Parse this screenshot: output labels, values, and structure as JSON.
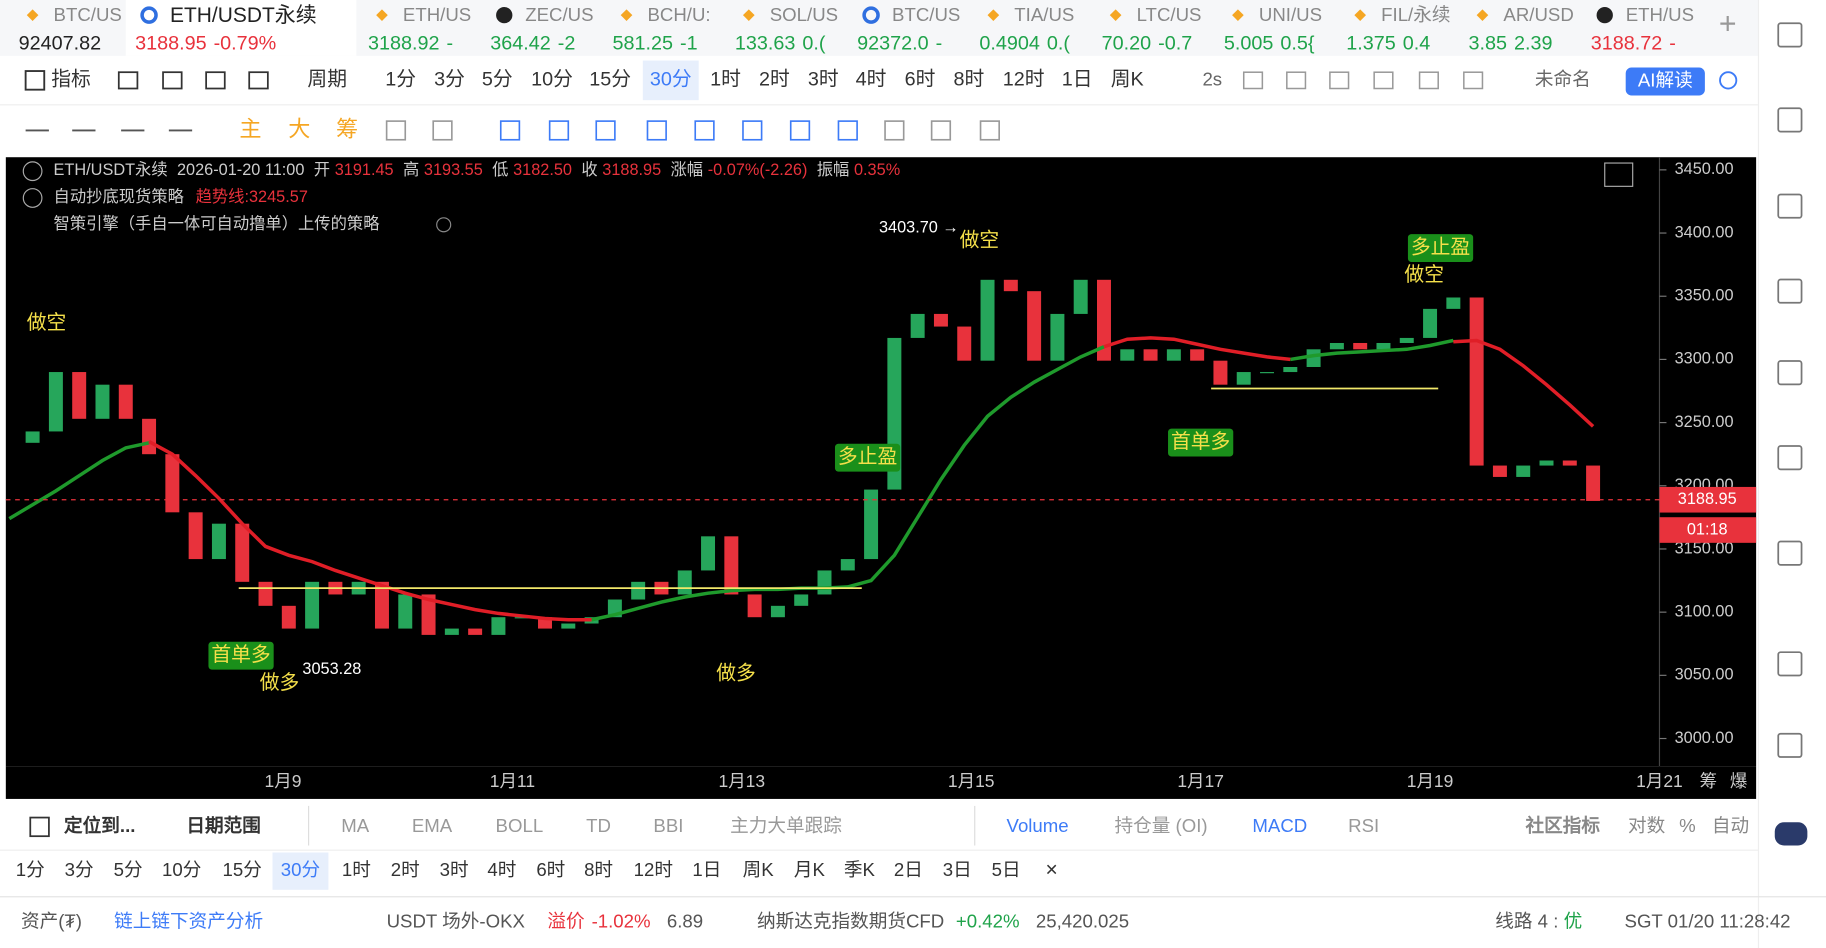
{
  "tabs": [
    {
      "name": "BTC/US",
      "price": "92407.82",
      "change": "",
      "color": "#222222"
    },
    {
      "name": "ETH/USDT永续",
      "price": "3188.95",
      "change": "-0.79%",
      "color": "#e8323c"
    },
    {
      "name": "ETH/US",
      "price": "3188.92",
      "change": "-",
      "color": "#1fa34a"
    },
    {
      "name": "ZEC/US",
      "price": "364.42",
      "change": "-2",
      "color": "#1fa34a"
    },
    {
      "name": "BCH/U:",
      "price": "581.25",
      "change": "-1",
      "color": "#1fa34a"
    },
    {
      "name": "SOL/US",
      "price": "133.63",
      "change": "0.(",
      "color": "#1fa34a"
    },
    {
      "name": "BTC/US",
      "price": "92372.0",
      "change": "-",
      "color": "#1fa34a"
    },
    {
      "name": "TIA/US",
      "price": "0.4904",
      "change": "0.(",
      "color": "#1fa34a"
    },
    {
      "name": "LTC/US",
      "price": "70.20",
      "change": "-0.7",
      "color": "#1fa34a"
    },
    {
      "name": "UNI/US",
      "price": "5.005",
      "change": "0.5{",
      "color": "#1fa34a"
    },
    {
      "name": "FIL/永续",
      "price": "1.375",
      "change": "0.4",
      "color": "#1fa34a"
    },
    {
      "name": "AR/USD",
      "price": "3.85",
      "change": "2.39",
      "color": "#1fa34a"
    },
    {
      "name": "ETH/US",
      "price": "3188.72",
      "change": "-",
      "color": "#e8323c"
    }
  ],
  "toolbar": {
    "indicator": "指标",
    "period": "周期",
    "intervals": [
      "1分",
      "3分",
      "5分",
      "10分",
      "15分",
      "30分",
      "1时",
      "2时",
      "3时",
      "4时",
      "6时",
      "8时",
      "12时",
      "1日",
      "周K"
    ],
    "selected": 5,
    "refresh": "2s",
    "layout": "未命名",
    "ai": "AI解读"
  },
  "tools": [
    "主",
    "大",
    "筹"
  ],
  "info": {
    "symbol": "ETH/USDT永续",
    "time": "2026-01-20 11:00",
    "fields": [
      {
        "label": "开",
        "value": "3191.45"
      },
      {
        "label": "高",
        "value": "3193.55"
      },
      {
        "label": "低",
        "value": "3182.50"
      },
      {
        "label": "收",
        "value": "3188.95"
      },
      {
        "label": "涨幅",
        "value": "-0.07%(-2.26)"
      },
      {
        "label": "振幅",
        "value": "0.35%"
      }
    ]
  },
  "strategy": {
    "name": "自动抄底现货策略",
    "trend": "趋势线:3245.57",
    "source": "智策引擎（手自一体可自动撸单）上传的策略"
  },
  "annotations": [
    "做空",
    "首单多",
    "做多",
    "3053.28",
    "做多",
    "多止盈",
    "3403.70 →",
    "做空",
    "首单多",
    "多止盈",
    "做空"
  ],
  "chart": {
    "type": "candlestick",
    "ylim": [
      2978,
      3460
    ],
    "yticks": [
      {
        "value": 3000,
        "label": "3000.00"
      },
      {
        "value": 3050,
        "label": "3050.00"
      },
      {
        "value": 3100,
        "label": "3100.00"
      },
      {
        "value": 3150,
        "label": "3150.00"
      },
      {
        "value": 3200,
        "label": "3200.00"
      },
      {
        "value": 3250,
        "label": "3250.00"
      },
      {
        "value": 3300,
        "label": "3300.00"
      },
      {
        "value": 3350,
        "label": "3350.00"
      },
      {
        "value": 3400,
        "label": "3400.00"
      },
      {
        "value": 3450,
        "label": "3450.00"
      }
    ],
    "closes": [
      3234,
      3243,
      3290,
      3253,
      3280,
      3253,
      3225,
      3179,
      3142,
      3170,
      3124,
      3105,
      3087,
      3124,
      3114,
      3124,
      3087,
      3114,
      3082,
      3087,
      3082,
      3096,
      3096,
      3087,
      3091,
      3096,
      3110,
      3124,
      3114,
      3133,
      3160,
      3114,
      3096,
      3105,
      3114,
      3133,
      3142,
      3197,
      3317,
      3336,
      3326,
      3299,
      3363,
      3354,
      3299,
      3336,
      3363,
      3299,
      3308,
      3299,
      3308,
      3299,
      3280,
      3290,
      3290,
      3294,
      3308,
      3313,
      3308,
      3313,
      3317,
      3340,
      3349,
      3216,
      3207,
      3216,
      3220,
      3216,
      3188
    ],
    "ma_green": [
      3174,
      3185,
      3196,
      3208,
      3220,
      3230,
      3234,
      null,
      null,
      null,
      null,
      null,
      null,
      null,
      null,
      null,
      null,
      null,
      null,
      null,
      null,
      null,
      null,
      null,
      null,
      3094,
      3098,
      3103,
      3108,
      3112,
      3115,
      3117,
      3118,
      3118,
      3119,
      3119,
      3120,
      3125,
      3145,
      3175,
      3205,
      3232,
      3255,
      3270,
      3282,
      3292,
      3302,
      3310,
      null,
      null,
      null,
      null,
      null,
      null,
      null,
      3300,
      3303,
      3305,
      3306,
      3307,
      3308,
      3311,
      3315,
      null,
      null,
      null,
      null,
      null,
      null
    ],
    "ma_red": [
      null,
      null,
      null,
      null,
      null,
      null,
      3235,
      3225,
      3208,
      3190,
      3170,
      3152,
      3145,
      3140,
      3133,
      3127,
      3121,
      3115,
      3110,
      3106,
      3102,
      3099,
      3097,
      3095,
      3094,
      3094,
      null,
      null,
      null,
      null,
      null,
      null,
      null,
      null,
      null,
      null,
      null,
      null,
      null,
      null,
      null,
      null,
      null,
      null,
      null,
      null,
      null,
      3310,
      3316,
      3317,
      3316,
      3312,
      3308,
      3305,
      3302,
      3300,
      null,
      null,
      null,
      null,
      null,
      null,
      3314,
      3315,
      3308,
      3295,
      3280,
      3264,
      3247
    ],
    "levels": [
      3119,
      3277
    ],
    "last": {
      "value": 3188.95,
      "label": "3188.95"
    },
    "countdown": "01:18",
    "xlabels": [
      "1月9",
      "1月11",
      "1月13",
      "1月15",
      "1月17",
      "1月19",
      "1月21"
    ],
    "axis_extra": [
      "筹",
      "爆"
    ]
  },
  "bottom": {
    "locate": "定位到...",
    "range": "日期范围",
    "main": [
      "MA",
      "EMA",
      "BOLL",
      "TD",
      "BBI",
      "主力大单跟踪"
    ],
    "sub": [
      "Volume",
      "持仓量 (OI)",
      "MACD",
      "RSI"
    ],
    "community": "社区指标",
    "options": [
      "对数",
      "%",
      "自动"
    ],
    "intervals": [
      "1分",
      "3分",
      "5分",
      "10分",
      "15分",
      "30分",
      "1时",
      "2时",
      "3时",
      "4时",
      "6时",
      "8时",
      "12时",
      "1日",
      "周K",
      "月K",
      "季K",
      "2日",
      "3日",
      "5日"
    ],
    "selected": 5
  },
  "status": {
    "assets": "资产(₮)",
    "analysis": "链上链下资产分析",
    "otc": "USDT 场外-OKX",
    "premium_label": "溢价",
    "premium": "-1.02%",
    "rate": "6.89",
    "index": "纳斯达克指数期货CFD",
    "index_change": "+0.42%",
    "index_value": "25,420.025",
    "line": "线路 4 : ",
    "line_quality": "优",
    "clock": "SGT 01/20 11:28:42"
  }
}
